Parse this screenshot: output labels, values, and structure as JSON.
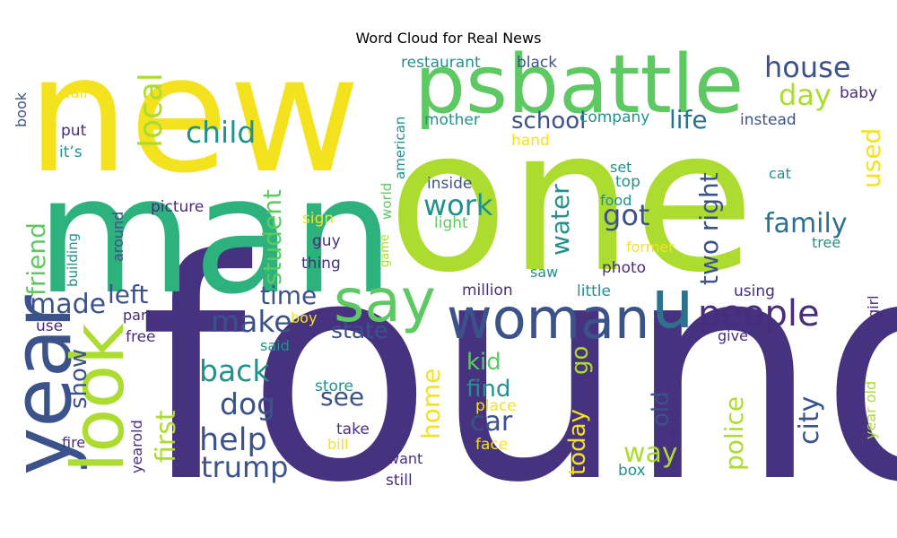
{
  "chart_data": {
    "type": "wordcloud",
    "title": "Word Cloud for Real News",
    "palette": "viridis",
    "words": [
      {
        "text": "found",
        "color": "#46327e"
      },
      {
        "text": "one",
        "color": "#addc30"
      },
      {
        "text": "new",
        "color": "#f4e21e"
      },
      {
        "text": "man",
        "color": "#2db27d"
      },
      {
        "text": "psbattle",
        "color": "#5ec962"
      },
      {
        "text": "woman",
        "color": "#3b528b"
      },
      {
        "text": "u",
        "color": "#2c728e"
      },
      {
        "text": "say",
        "color": "#5ec962"
      },
      {
        "text": "year",
        "color": "#3b528b"
      },
      {
        "text": "look",
        "color": "#addc30"
      },
      {
        "text": "people",
        "color": "#472d7b"
      },
      {
        "text": "house",
        "color": "#3b528b"
      },
      {
        "text": "day",
        "color": "#addc30"
      },
      {
        "text": "child",
        "color": "#21918c"
      },
      {
        "text": "life",
        "color": "#2c728e"
      },
      {
        "text": "school",
        "color": "#3b528b"
      },
      {
        "text": "local",
        "color": "#addc30"
      },
      {
        "text": "work",
        "color": "#21918c"
      },
      {
        "text": "got",
        "color": "#3b528b"
      },
      {
        "text": "family",
        "color": "#2c728e"
      },
      {
        "text": "two right",
        "color": "#3b528b"
      },
      {
        "text": "used",
        "color": "#f4e21e"
      },
      {
        "text": "student",
        "color": "#5ec962"
      },
      {
        "text": "water",
        "color": "#21918c"
      },
      {
        "text": "friend",
        "color": "#5ec962"
      },
      {
        "text": "made",
        "color": "#3b528b"
      },
      {
        "text": "left",
        "color": "#3b528b"
      },
      {
        "text": "time",
        "color": "#3b528b"
      },
      {
        "text": "make",
        "color": "#3b528b"
      },
      {
        "text": "back",
        "color": "#21918c"
      },
      {
        "text": "dog",
        "color": "#3b528b"
      },
      {
        "text": "help",
        "color": "#3b528b"
      },
      {
        "text": "trump",
        "color": "#3b528b"
      },
      {
        "text": "first",
        "color": "#addc30"
      },
      {
        "text": "show",
        "color": "#3b528b"
      },
      {
        "text": "state",
        "color": "#3b528b"
      },
      {
        "text": "see",
        "color": "#3b528b"
      },
      {
        "text": "kid",
        "color": "#5ec962"
      },
      {
        "text": "find",
        "color": "#21918c"
      },
      {
        "text": "car",
        "color": "#3b528b"
      },
      {
        "text": "home",
        "color": "#f4e21e"
      },
      {
        "text": "go",
        "color": "#addc30"
      },
      {
        "text": "today",
        "color": "#f4e21e"
      },
      {
        "text": "old",
        "color": "#3b528b"
      },
      {
        "text": "way",
        "color": "#addc30"
      },
      {
        "text": "police",
        "color": "#addc30"
      },
      {
        "text": "city",
        "color": "#3b528b"
      },
      {
        "text": "restaurant",
        "color": "#21918c"
      },
      {
        "text": "black",
        "color": "#3b528b"
      },
      {
        "text": "baby",
        "color": "#472d7b"
      },
      {
        "text": "instead",
        "color": "#3b528b"
      },
      {
        "text": "company",
        "color": "#21918c"
      },
      {
        "text": "mother",
        "color": "#21918c"
      },
      {
        "text": "hand",
        "color": "#f4e21e"
      },
      {
        "text": "american",
        "color": "#21918c"
      },
      {
        "text": "book",
        "color": "#3b528b"
      },
      {
        "text": "call",
        "color": "#f4e21e"
      },
      {
        "text": "put",
        "color": "#472d7b"
      },
      {
        "text": "it’s",
        "color": "#21918c"
      },
      {
        "text": "inside",
        "color": "#3b528b"
      },
      {
        "text": "set",
        "color": "#21918c"
      },
      {
        "text": "top",
        "color": "#21918c"
      },
      {
        "text": "food",
        "color": "#21918c"
      },
      {
        "text": "light",
        "color": "#5ec962"
      },
      {
        "text": "cat",
        "color": "#21918c"
      },
      {
        "text": "tree",
        "color": "#21918c"
      },
      {
        "text": "picture",
        "color": "#472d7b"
      },
      {
        "text": "around",
        "color": "#3b528b"
      },
      {
        "text": "building",
        "color": "#21918c"
      },
      {
        "text": "sign",
        "color": "#f4e21e"
      },
      {
        "text": "guy",
        "color": "#472d7b"
      },
      {
        "text": "thing",
        "color": "#472d7b"
      },
      {
        "text": "world",
        "color": "#5ec962"
      },
      {
        "text": "game",
        "color": "#addc30"
      },
      {
        "text": "former",
        "color": "#f4e21e"
      },
      {
        "text": "photo",
        "color": "#472d7b"
      },
      {
        "text": "saw",
        "color": "#21918c"
      },
      {
        "text": "million",
        "color": "#472d7b"
      },
      {
        "text": "little",
        "color": "#21918c"
      },
      {
        "text": "using",
        "color": "#472d7b"
      },
      {
        "text": "girl",
        "color": "#472d7b"
      },
      {
        "text": "give",
        "color": "#472d7b"
      },
      {
        "text": "boy",
        "color": "#f4e21e"
      },
      {
        "text": "part",
        "color": "#472d7b"
      },
      {
        "text": "use",
        "color": "#472d7b"
      },
      {
        "text": "free",
        "color": "#472d7b"
      },
      {
        "text": "said",
        "color": "#21918c"
      },
      {
        "text": "store",
        "color": "#21918c"
      },
      {
        "text": "take",
        "color": "#472d7b"
      },
      {
        "text": "bill",
        "color": "#f4e21e"
      },
      {
        "text": "place",
        "color": "#f4e21e"
      },
      {
        "text": "face",
        "color": "#f4e21e"
      },
      {
        "text": "outside",
        "color": "#472d7b"
      },
      {
        "text": "want",
        "color": "#472d7b"
      },
      {
        "text": "box",
        "color": "#21918c"
      },
      {
        "text": "still",
        "color": "#472d7b"
      },
      {
        "text": "fire",
        "color": "#472d7b"
      },
      {
        "text": "yearold",
        "color": "#472d7b"
      },
      {
        "text": "year old",
        "color": "#addc30"
      }
    ]
  }
}
